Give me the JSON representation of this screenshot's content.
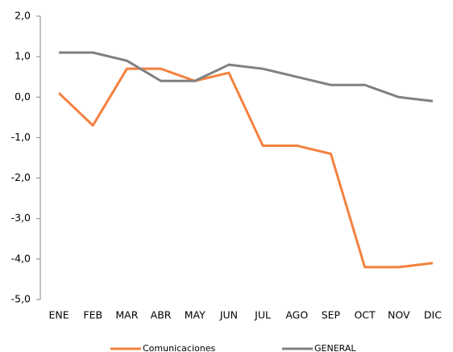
{
  "chart_data": {
    "type": "line",
    "categories": [
      "ENE",
      "FEB",
      "MAR",
      "ABR",
      "MAY",
      "JUN",
      "JUL",
      "AGO",
      "SEP",
      "OCT",
      "NOV",
      "DIC"
    ],
    "series": [
      {
        "name": "Comunicaciones",
        "color": "#f4813f",
        "values": [
          0.1,
          -0.7,
          0.7,
          0.7,
          0.4,
          0.6,
          -1.2,
          -1.2,
          -1.4,
          -4.2,
          -4.2,
          -4.1
        ]
      },
      {
        "name": "GENERAL",
        "color": "#808080",
        "values": [
          1.1,
          1.1,
          0.9,
          0.4,
          0.4,
          0.8,
          0.7,
          0.5,
          0.3,
          0.3,
          0.0,
          -0.1
        ]
      }
    ],
    "ylim": [
      -5,
      2
    ],
    "yticks": [
      {
        "value": 2,
        "label": "2,0"
      },
      {
        "value": 1,
        "label": "1,0"
      },
      {
        "value": 0,
        "label": "0,0"
      },
      {
        "value": -1,
        "label": "-1,0"
      },
      {
        "value": -2,
        "label": "-2,0"
      },
      {
        "value": -3,
        "label": "-3,0"
      },
      {
        "value": -4,
        "label": "-4,0"
      },
      {
        "value": -5,
        "label": "-5,0"
      }
    ],
    "grid": false,
    "legend": "bottom"
  }
}
